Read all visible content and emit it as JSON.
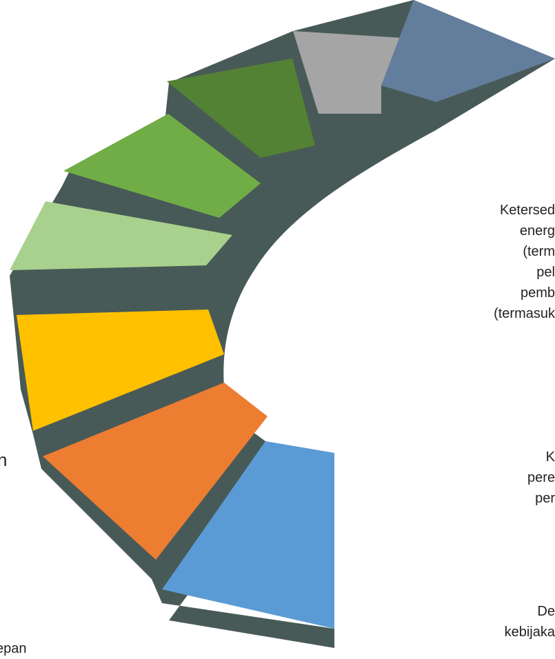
{
  "diagram": {
    "colors": {
      "side": "#485a57",
      "steps": [
        "#5b9bd5",
        "#ed7d31",
        "#ffc000",
        "#a9d18e",
        "#70ad47",
        "#548235",
        "#a5a5a5",
        "#637d9c"
      ]
    },
    "step_names": [
      "blue-step",
      "orange-step",
      "yellow-step",
      "light-green-step",
      "green-step",
      "dark-green-step",
      "gray-step",
      "slate-step"
    ],
    "labels": {
      "top": [
        "Ketersed",
        "energ",
        "(term",
        "pel",
        "pemb",
        "(termasuk"
      ],
      "mid": [
        "K",
        "pere",
        "per"
      ],
      "bottom": [
        "De",
        "kebijaka"
      ],
      "left_bottom": "epan",
      "left_mark": "n"
    }
  }
}
